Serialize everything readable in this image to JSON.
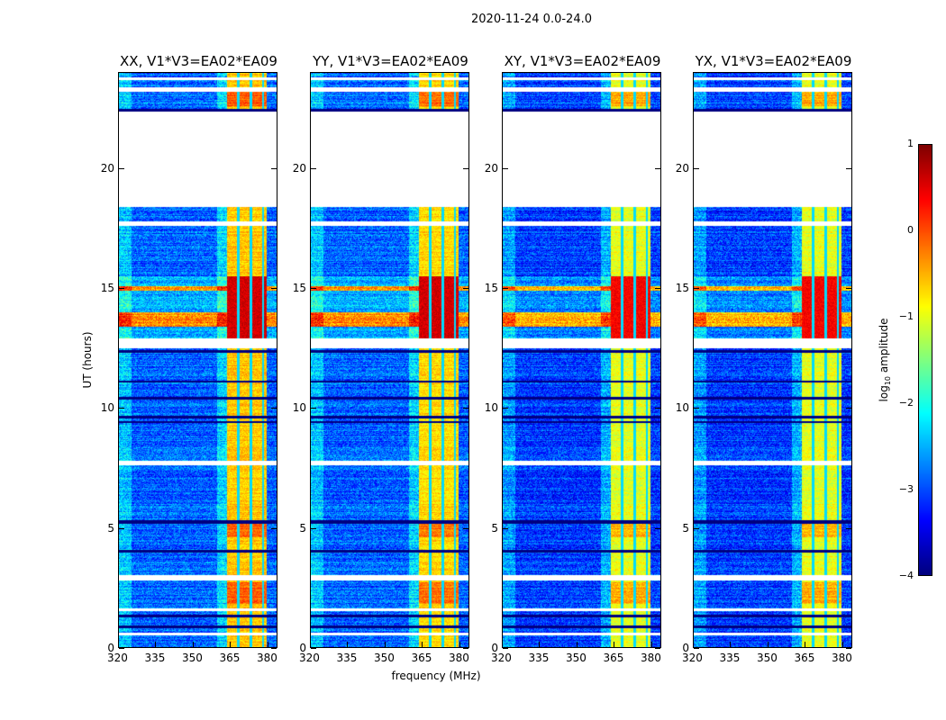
{
  "chart_data": {
    "type": "heatmap",
    "title": "2020-11-24 0.0-24.0",
    "xlabel": "frequency (MHz)",
    "ylabel": "UT (hours)",
    "xlim": [
      320,
      384
    ],
    "ylim": [
      0,
      24
    ],
    "xticks": [
      320,
      335,
      350,
      365,
      380
    ],
    "yticks": [
      0,
      5,
      10,
      15,
      20
    ],
    "colorbar": {
      "label_prefix": "log",
      "label_sub": "10",
      "label_suffix": " amplitude",
      "range": [
        -4,
        1
      ],
      "ticks": [
        1,
        0,
        -1,
        -2,
        -3,
        -4
      ],
      "colormap": "jet"
    },
    "panels": [
      {
        "title": "XX, V1*V3=EA02*EA09",
        "background_level": -2.9,
        "band_level": -0.6,
        "hot_level": 0.6
      },
      {
        "title": "YY, V1*V3=EA02*EA09",
        "background_level": -2.9,
        "band_level": -0.7,
        "hot_level": 0.6
      },
      {
        "title": "XY, V1*V3=EA02*EA09",
        "background_level": -3.1,
        "band_level": -1.0,
        "hot_level": 0.4
      },
      {
        "title": "YX, V1*V3=EA02*EA09",
        "background_level": -3.1,
        "band_level": -1.0,
        "hot_level": 0.4
      }
    ],
    "rfi_band_mhz": [
      364,
      380
    ],
    "hot_period_hours": [
      12.9,
      15.5
    ],
    "blank_periods_hours": [
      [
        18.4,
        22.4
      ],
      [
        12.5,
        12.9
      ],
      [
        2.8,
        3.0
      ],
      [
        7.6,
        7.8
      ],
      [
        0.5,
        0.6
      ],
      [
        1.5,
        1.6
      ],
      [
        23.2,
        23.4
      ],
      [
        17.6,
        17.8
      ],
      [
        23.7,
        23.8
      ]
    ]
  }
}
